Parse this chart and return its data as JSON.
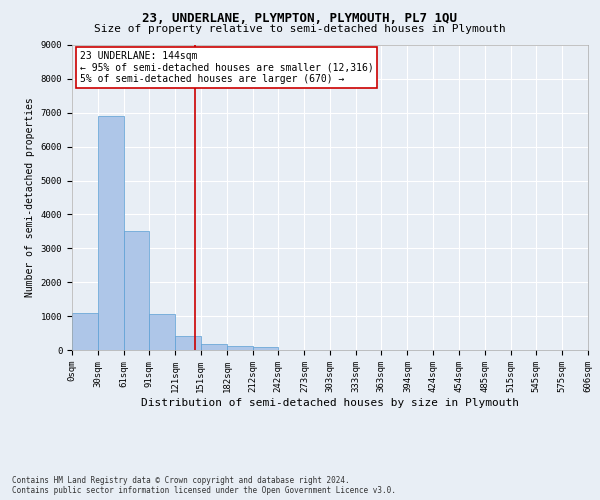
{
  "title": "23, UNDERLANE, PLYMPTON, PLYMOUTH, PL7 1QU",
  "subtitle": "Size of property relative to semi-detached houses in Plymouth",
  "xlabel": "Distribution of semi-detached houses by size in Plymouth",
  "ylabel": "Number of semi-detached properties",
  "footer_line1": "Contains HM Land Registry data © Crown copyright and database right 2024.",
  "footer_line2": "Contains public sector information licensed under the Open Government Licence v3.0.",
  "bar_edges": [
    0,
    30,
    61,
    91,
    121,
    151,
    182,
    212,
    242,
    273,
    303,
    333,
    363,
    394,
    424,
    454,
    485,
    515,
    545,
    575,
    606
  ],
  "bar_heights": [
    1100,
    6900,
    3500,
    1050,
    400,
    180,
    110,
    80,
    0,
    0,
    0,
    0,
    0,
    0,
    0,
    0,
    0,
    0,
    0,
    0
  ],
  "bar_color": "#aec6e8",
  "bar_edge_color": "#5a9fd4",
  "property_size": 144,
  "vertical_line_color": "#cc0000",
  "annotation_text": "23 UNDERLANE: 144sqm\n← 95% of semi-detached houses are smaller (12,316)\n5% of semi-detached houses are larger (670) →",
  "annotation_box_color": "#ffffff",
  "annotation_box_edge_color": "#cc0000",
  "ylim": [
    0,
    9000
  ],
  "background_color": "#e8eef5",
  "plot_background_color": "#e8eef5",
  "grid_color": "#ffffff",
  "title_fontsize": 9,
  "subtitle_fontsize": 8,
  "xlabel_fontsize": 8,
  "ylabel_fontsize": 7,
  "tick_label_fontsize": 6.5,
  "annotation_fontsize": 7,
  "footer_fontsize": 5.5
}
